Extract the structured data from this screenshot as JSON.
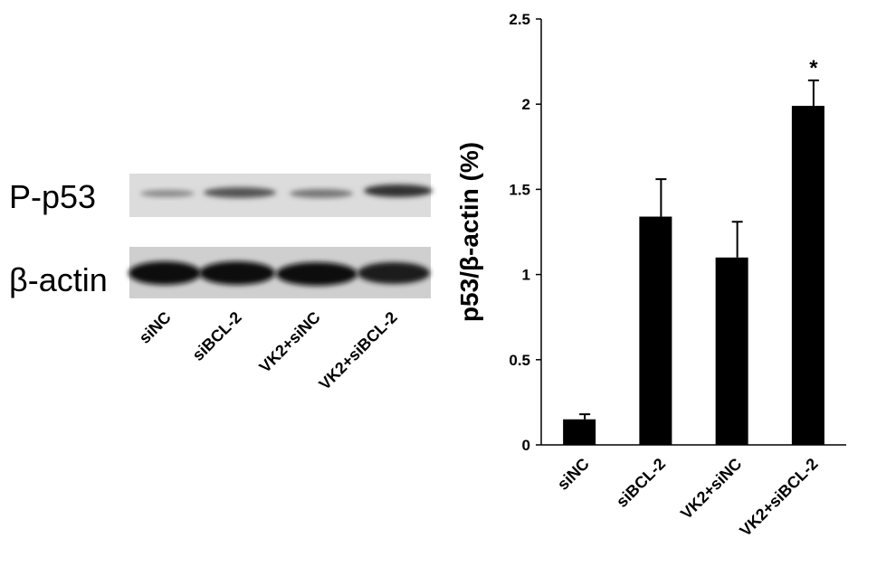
{
  "blot": {
    "rows": [
      "P-p53",
      "β-actin"
    ],
    "lanes": [
      "siNC",
      "siBCL-2",
      "VK2+siNC",
      "VK2+siBCL-2"
    ]
  },
  "chart_data": {
    "type": "bar",
    "y_label": "p53/β-actin (%)",
    "categories": [
      "siNC",
      "siBCL-2",
      "VK2+siNC",
      "VK2+siBCL-2"
    ],
    "values": [
      0.15,
      1.34,
      1.1,
      1.99
    ],
    "errors": [
      0.03,
      0.22,
      0.21,
      0.15
    ],
    "annotations": [
      null,
      null,
      null,
      "*"
    ],
    "color": "#000000",
    "ylim": [
      0,
      2.5
    ],
    "yticks": [
      0,
      0.5,
      1,
      1.5,
      2,
      2.5
    ],
    "grid": false
  }
}
